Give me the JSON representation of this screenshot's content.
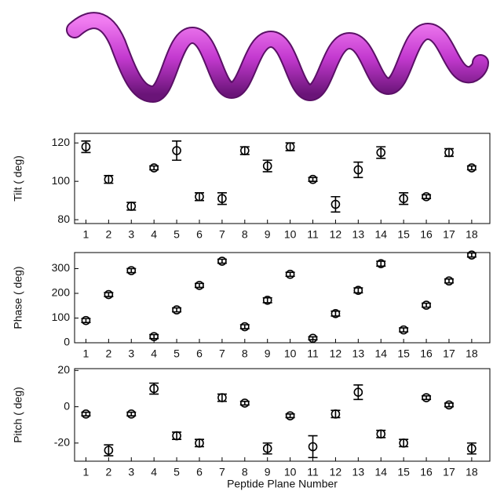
{
  "chart_data": [
    {
      "type": "scatter",
      "ylabel": "Tilt ( deg)",
      "x": [
        1,
        2,
        3,
        4,
        5,
        6,
        7,
        8,
        9,
        10,
        11,
        12,
        13,
        14,
        15,
        16,
        17,
        18
      ],
      "values": [
        118,
        101,
        87,
        107,
        116,
        92,
        91,
        116,
        108,
        118,
        101,
        88,
        106,
        115,
        91,
        92,
        115,
        107
      ],
      "errors": [
        3,
        2,
        2,
        1,
        5,
        2,
        3,
        2,
        3,
        2,
        1,
        4,
        4,
        3,
        3,
        1,
        2,
        1
      ],
      "xlim": [
        0.5,
        18.8
      ],
      "xticks": [
        1,
        2,
        3,
        4,
        5,
        6,
        7,
        8,
        9,
        10,
        11,
        12,
        13,
        14,
        15,
        16,
        17,
        18
      ],
      "ylim": [
        78,
        125
      ],
      "yticks": [
        80,
        100,
        120
      ]
    },
    {
      "type": "scatter",
      "ylabel": "Phase ( deg)",
      "x": [
        1,
        2,
        3,
        4,
        5,
        6,
        7,
        8,
        9,
        10,
        11,
        12,
        13,
        14,
        15,
        16,
        17,
        18
      ],
      "values": [
        90,
        195,
        292,
        25,
        133,
        232,
        330,
        65,
        172,
        277,
        18,
        118,
        212,
        320,
        52,
        152,
        250,
        355
      ],
      "errors": [
        8,
        8,
        8,
        8,
        8,
        8,
        8,
        8,
        10,
        8,
        6,
        10,
        10,
        10,
        8,
        8,
        8,
        8
      ],
      "xlim": [
        0.5,
        18.8
      ],
      "xticks": [
        1,
        2,
        3,
        4,
        5,
        6,
        7,
        8,
        9,
        10,
        11,
        12,
        13,
        14,
        15,
        16,
        17,
        18
      ],
      "ylim": [
        0,
        365
      ],
      "yticks": [
        0,
        100,
        200,
        300
      ]
    },
    {
      "type": "scatter",
      "ylabel": "Pitch ( deg)",
      "xlabel": "Peptide Plane Number",
      "x": [
        1,
        2,
        3,
        4,
        5,
        6,
        7,
        8,
        9,
        10,
        11,
        12,
        13,
        14,
        15,
        16,
        17,
        18
      ],
      "values": [
        -4,
        -24,
        -4,
        10,
        -16,
        -20,
        5,
        2,
        -23,
        -5,
        -22,
        -4,
        8,
        -15,
        -20,
        5,
        1,
        -23
      ],
      "errors": [
        1,
        3,
        1,
        3,
        2,
        2,
        2,
        1,
        3,
        1,
        6,
        2,
        4,
        2,
        2,
        1,
        1,
        3
      ],
      "xlim": [
        0.5,
        18.8
      ],
      "xticks": [
        1,
        2,
        3,
        4,
        5,
        6,
        7,
        8,
        9,
        10,
        11,
        12,
        13,
        14,
        15,
        16,
        17,
        18
      ],
      "ylim": [
        -30,
        21
      ],
      "yticks": [
        -20,
        0,
        20
      ]
    }
  ]
}
